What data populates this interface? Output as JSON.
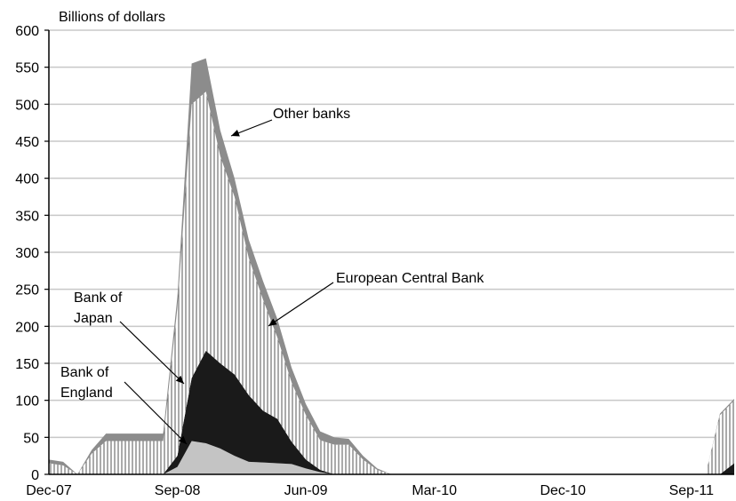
{
  "chart_data": {
    "type": "area",
    "stacked": true,
    "y_unit_label": "Billions of dollars",
    "ylim": [
      0,
      600
    ],
    "y_ticks": [
      0,
      50,
      100,
      150,
      200,
      250,
      300,
      350,
      400,
      450,
      500,
      550,
      600
    ],
    "x_ticks": [
      "Dec-07",
      "Sep-08",
      "Jun-09",
      "Mar-10",
      "Dec-10",
      "Sep-11"
    ],
    "x_range": [
      "2007-12",
      "2011-12"
    ],
    "grid": "horizontal",
    "legend": "annotations",
    "colors": {
      "Bank of England": "#c4c4c4",
      "Bank of Japan": "#1a1a1a",
      "European Central Bank": "#ffffff",
      "Other banks": "#8c8c8c",
      "ecb_hatch": "#555555",
      "grid": "#c8c8c8",
      "axis": "#000000"
    },
    "annotations": [
      {
        "series": "Other banks",
        "text": [
          "Other banks"
        ]
      },
      {
        "series": "European Central Bank",
        "text": [
          "European Central Bank"
        ]
      },
      {
        "series": "Bank of Japan",
        "text": [
          "Bank of",
          "Japan"
        ]
      },
      {
        "series": "Bank of England",
        "text": [
          "Bank of",
          "England"
        ]
      }
    ],
    "x": [
      "2007-12",
      "2008-01",
      "2008-02",
      "2008-03",
      "2008-04",
      "2008-05",
      "2008-06",
      "2008-07",
      "2008-08",
      "2008-09",
      "2008-10",
      "2008-11",
      "2008-12",
      "2009-01",
      "2009-02",
      "2009-03",
      "2009-04",
      "2009-05",
      "2009-06",
      "2009-07",
      "2009-08",
      "2009-09",
      "2009-10",
      "2009-11",
      "2009-12",
      "2010-01",
      "2010-02",
      "2010-03",
      "2010-04",
      "2010-05",
      "2010-06",
      "2010-07",
      "2010-08",
      "2010-09",
      "2010-10",
      "2010-11",
      "2010-12",
      "2011-01",
      "2011-02",
      "2011-03",
      "2011-04",
      "2011-05",
      "2011-06",
      "2011-07",
      "2011-08",
      "2011-09",
      "2011-10",
      "2011-11",
      "2011-12"
    ],
    "series": [
      {
        "name": "Bank of England",
        "values": [
          0,
          0,
          0,
          0,
          0,
          0,
          0,
          0,
          0,
          10,
          45,
          42,
          35,
          25,
          17,
          16,
          15,
          14,
          8,
          3,
          0,
          0,
          0,
          0,
          0,
          0,
          0,
          0,
          0,
          0,
          0,
          0,
          0,
          0,
          0,
          0,
          0,
          0,
          0,
          0,
          0,
          0,
          0,
          0,
          0,
          0,
          0,
          0,
          0
        ]
      },
      {
        "name": "Bank of Japan",
        "values": [
          0,
          0,
          0,
          0,
          0,
          0,
          0,
          0,
          0,
          15,
          85,
          125,
          115,
          110,
          90,
          70,
          60,
          30,
          12,
          3,
          0,
          0,
          0,
          0,
          0,
          0,
          0,
          0,
          0,
          0,
          0,
          0,
          0,
          0,
          0,
          0,
          0,
          0,
          0,
          0,
          0,
          0,
          0,
          0,
          0,
          0,
          0,
          0,
          15
        ]
      },
      {
        "name": "European Central Bank",
        "values": [
          15,
          12,
          0,
          28,
          45,
          45,
          45,
          45,
          45,
          200,
          370,
          350,
          280,
          240,
          185,
          150,
          110,
          80,
          60,
          40,
          40,
          40,
          20,
          6,
          0,
          0,
          0,
          0,
          0,
          0,
          0,
          0,
          0,
          0,
          0,
          0,
          0,
          0,
          0,
          0,
          0,
          0,
          0,
          0,
          0,
          0,
          0,
          80,
          85
        ]
      },
      {
        "name": "Other banks",
        "values": [
          5,
          5,
          0,
          5,
          10,
          10,
          10,
          10,
          10,
          15,
          55,
          45,
          35,
          25,
          25,
          25,
          25,
          20,
          15,
          12,
          10,
          8,
          5,
          2,
          0,
          0,
          0,
          0,
          0,
          0,
          0,
          0,
          0,
          0,
          0,
          0,
          0,
          0,
          0,
          0,
          0,
          0,
          0,
          0,
          0,
          0,
          0,
          2,
          2
        ]
      }
    ]
  }
}
